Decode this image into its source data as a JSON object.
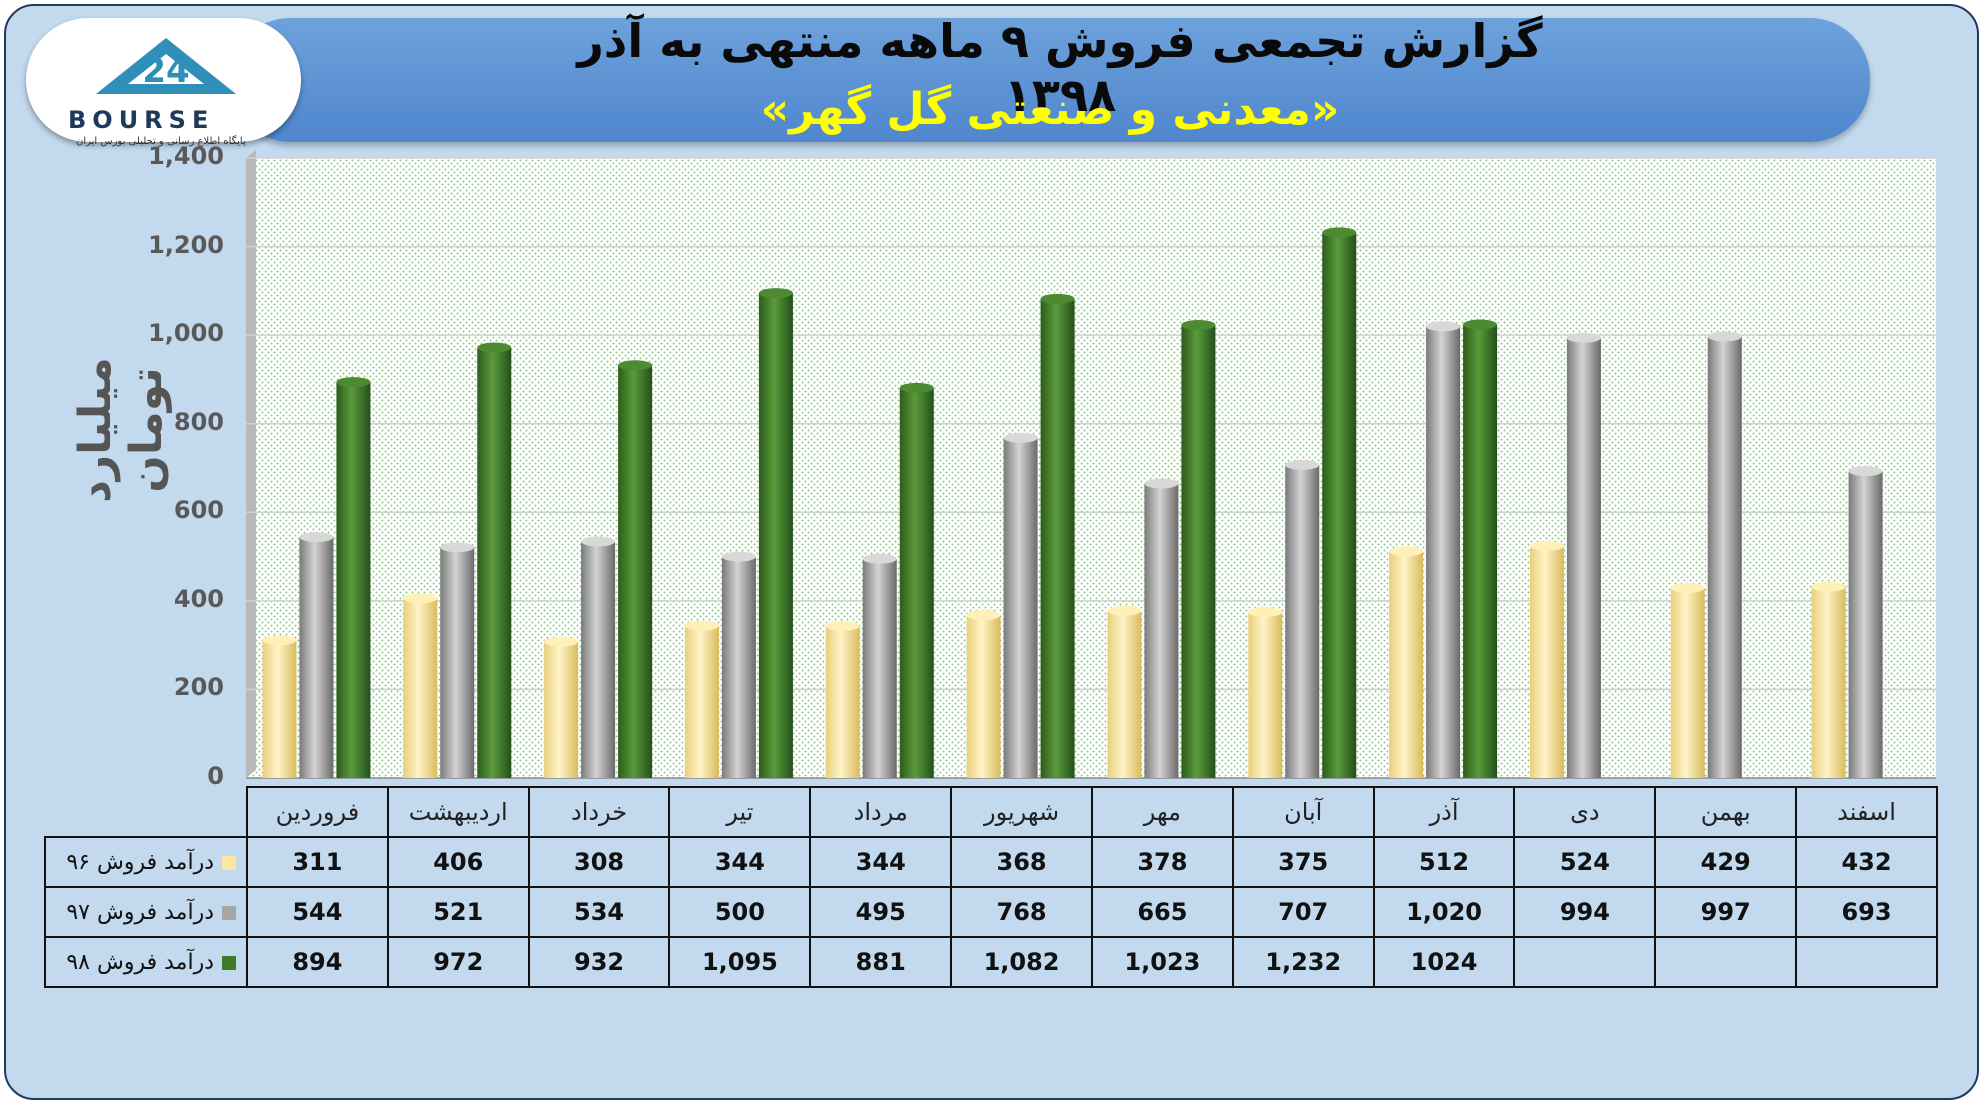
{
  "header": {
    "title": "گزارش تجمعی فروش ۹ ماهه منتهی به آذر ۱۳۹۸",
    "subtitle": "«معدنی و صنعتی گل گهر»"
  },
  "logo": {
    "name": "BOURSE",
    "tagline": "پایگاه اطلاع رسانی و تحلیلی بورس ایران"
  },
  "chart_data": {
    "type": "bar",
    "ylabel": "میلیارد تومان",
    "ylim": [
      0,
      1400
    ],
    "yticks": [
      "0",
      "200",
      "400",
      "600",
      "800",
      "1,000",
      "1,200",
      "1,400"
    ],
    "categories": [
      "فروردین",
      "اردیبهشت",
      "خرداد",
      "تیر",
      "مرداد",
      "شهریور",
      "مهر",
      "آبان",
      "آذر",
      "دی",
      "بهمن",
      "اسفند"
    ],
    "series": [
      {
        "name": "درآمد فروش ۹۶",
        "color": "#fde6a0",
        "values": [
          311,
          406,
          308,
          344,
          344,
          368,
          378,
          375,
          512,
          524,
          429,
          432
        ],
        "labels": [
          "311",
          "406",
          "308",
          "344",
          "344",
          "368",
          "378",
          "375",
          "512",
          "524",
          "429",
          "432"
        ]
      },
      {
        "name": "درآمد فروش ۹۷",
        "color": "#a6a6a6",
        "values": [
          544,
          521,
          534,
          500,
          495,
          768,
          665,
          707,
          1020,
          994,
          997,
          693
        ],
        "labels": [
          "544",
          "521",
          "534",
          "500",
          "495",
          "768",
          "665",
          "707",
          "1,020",
          "994",
          "997",
          "693"
        ]
      },
      {
        "name": "درآمد فروش ۹۸",
        "color": "#3f7a28",
        "values": [
          894,
          972,
          932,
          1095,
          881,
          1082,
          1023,
          1232,
          1024,
          null,
          null,
          null
        ],
        "labels": [
          "894",
          "972",
          "932",
          "1,095",
          "881",
          "1,082",
          "1,023",
          "1,232",
          "1024",
          "",
          "",
          ""
        ]
      }
    ],
    "grid": true,
    "legend": "table-left"
  }
}
